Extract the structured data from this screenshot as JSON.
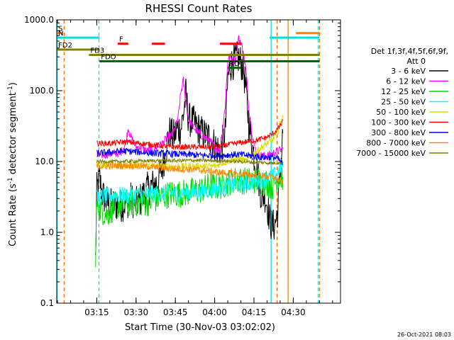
{
  "chart_data": {
    "type": "line",
    "title": "RHESSI Count Rates",
    "xlabel": "Start Time (30-Nov-03 03:02:02)",
    "ylabel": "Count Rate (s",
    "ylabel_sup1": "-1",
    "ylabel_mid": " detector segment",
    "ylabel_sup2": "-1",
    "ylabel_end": ")",
    "x_start_minutes": 0,
    "x_end_minutes": 100,
    "xlim_minutes": [
      -2.3,
      106
    ],
    "x_tick_labels": [
      "03:15",
      "03:30",
      "03:45",
      "04:00",
      "04:15",
      "04:30"
    ],
    "x_tick_minutes": [
      12.97,
      27.97,
      42.97,
      57.97,
      72.97,
      87.97
    ],
    "yscale": "log",
    "ylim": [
      0.1,
      1000
    ],
    "y_tick_labels": [
      "0.1",
      "1.0",
      "10.0",
      "100.0",
      "1000.0"
    ],
    "y_tick_values": [
      0.1,
      1,
      10,
      100,
      1000
    ],
    "legend_title_line1": "Det 1f,3f,4f,5f,6f,9f,",
    "legend_title_line2": "Att 0",
    "legend_position": "right",
    "timestamp": "26-Oct-2021 08:03",
    "series": [
      {
        "name": "3 - 6 keV",
        "color": "#000000",
        "points": [
          [
            12.5,
            0.4
          ],
          [
            13,
            4
          ],
          [
            14,
            6
          ],
          [
            15,
            3.5
          ],
          [
            16,
            3
          ],
          [
            18,
            2.4
          ],
          [
            20,
            2.5
          ],
          [
            22,
            2.4
          ],
          [
            24,
            2.6
          ],
          [
            26,
            3
          ],
          [
            28,
            2.5
          ],
          [
            30,
            3
          ],
          [
            32,
            4
          ],
          [
            34,
            4.5
          ],
          [
            36,
            5
          ],
          [
            38,
            8
          ],
          [
            40,
            20
          ],
          [
            41,
            27
          ],
          [
            42,
            22
          ],
          [
            43,
            25
          ],
          [
            44,
            30
          ],
          [
            45,
            28
          ],
          [
            46,
            45
          ],
          [
            47,
            90
          ],
          [
            48,
            40
          ],
          [
            50,
            35
          ],
          [
            52,
            28
          ],
          [
            54,
            24
          ],
          [
            56,
            22
          ],
          [
            58,
            17
          ],
          [
            60,
            14
          ],
          [
            62,
            25
          ],
          [
            63,
            150
          ],
          [
            64,
            230
          ],
          [
            65,
            250
          ],
          [
            66,
            280
          ],
          [
            67,
            290
          ],
          [
            68,
            250
          ],
          [
            69,
            200
          ],
          [
            70,
            90
          ],
          [
            71,
            35
          ],
          [
            72,
            20
          ],
          [
            73,
            12
          ],
          [
            74,
            8
          ],
          [
            75,
            5
          ],
          [
            76,
            3
          ],
          [
            77,
            3.5
          ],
          [
            78,
            2.5
          ],
          [
            79,
            1.5
          ],
          [
            80,
            1.2
          ],
          [
            81,
            1.3
          ],
          [
            82,
            2
          ],
          [
            83,
            7
          ],
          [
            84,
            25
          ]
        ]
      },
      {
        "name": "6 - 12 keV",
        "color": "#ff00ff",
        "points": [
          [
            13,
            12
          ],
          [
            16,
            12.5
          ],
          [
            19,
            13
          ],
          [
            22,
            13
          ],
          [
            24,
            18
          ],
          [
            25,
            30
          ],
          [
            26,
            22
          ],
          [
            28,
            16
          ],
          [
            30,
            16
          ],
          [
            32,
            14
          ],
          [
            34,
            15
          ],
          [
            36,
            16
          ],
          [
            38,
            18
          ],
          [
            40,
            22
          ],
          [
            42,
            24
          ],
          [
            44,
            40
          ],
          [
            45,
            90
          ],
          [
            46,
            140
          ],
          [
            47,
            70
          ],
          [
            48,
            40
          ],
          [
            50,
            30
          ],
          [
            52,
            25
          ],
          [
            54,
            22
          ],
          [
            56,
            20
          ],
          [
            58,
            16
          ],
          [
            60,
            14
          ],
          [
            62,
            60
          ],
          [
            63,
            280
          ],
          [
            64,
            300
          ],
          [
            65,
            260
          ],
          [
            66,
            280
          ],
          [
            67,
            550
          ],
          [
            68,
            480
          ],
          [
            69,
            330
          ],
          [
            70,
            180
          ],
          [
            71,
            60
          ],
          [
            72,
            30
          ],
          [
            73,
            17
          ],
          [
            74,
            13
          ],
          [
            76,
            12
          ],
          [
            78,
            12
          ],
          [
            80,
            13
          ],
          [
            82,
            14
          ],
          [
            84,
            15
          ]
        ]
      },
      {
        "name": "12 - 25 keV",
        "color": "#00dd00",
        "points": [
          [
            12.5,
            0.5
          ],
          [
            13,
            2.5
          ],
          [
            15,
            2
          ],
          [
            17,
            1.8
          ],
          [
            20,
            2.4
          ],
          [
            23,
            2.5
          ],
          [
            26,
            2.6
          ],
          [
            29,
            2.6
          ],
          [
            32,
            2.6
          ],
          [
            35,
            2.9
          ],
          [
            38,
            3.2
          ],
          [
            41,
            3.5
          ],
          [
            44,
            3.5
          ],
          [
            47,
            3.6
          ],
          [
            50,
            3.8
          ],
          [
            53,
            4
          ],
          [
            56,
            4.5
          ],
          [
            59,
            4.4
          ],
          [
            62,
            4.8
          ],
          [
            65,
            5.5
          ],
          [
            68,
            5.4
          ],
          [
            71,
            5.3
          ],
          [
            74,
            5.5
          ],
          [
            77,
            5.3
          ],
          [
            80,
            4.4
          ],
          [
            82,
            6
          ],
          [
            84,
            6
          ]
        ]
      },
      {
        "name": "25 - 50 keV",
        "color": "#00ffff",
        "points": [
          [
            13,
            3.1
          ],
          [
            16,
            3.2
          ],
          [
            19,
            3.3
          ],
          [
            22,
            3.4
          ],
          [
            25,
            3.3
          ],
          [
            28,
            3.4
          ],
          [
            31,
            3.4
          ],
          [
            34,
            3.5
          ],
          [
            37,
            3.5
          ],
          [
            40,
            3.6
          ],
          [
            43,
            3.6
          ],
          [
            46,
            3.6
          ],
          [
            49,
            3.7
          ],
          [
            52,
            3.7
          ],
          [
            55,
            3.9
          ],
          [
            58,
            4.1
          ],
          [
            61,
            4.3
          ],
          [
            64,
            4.5
          ],
          [
            67,
            4.8
          ],
          [
            70,
            4.9
          ],
          [
            73,
            5.2
          ],
          [
            76,
            5.4
          ],
          [
            79,
            5.8
          ],
          [
            81,
            6.5
          ],
          [
            83,
            8
          ],
          [
            84,
            10
          ]
        ]
      },
      {
        "name": "50 - 100 keV",
        "color": "#dddd00",
        "points": [
          [
            13,
            9
          ],
          [
            20,
            9
          ],
          [
            30,
            8.8
          ],
          [
            40,
            8.6
          ],
          [
            50,
            8.5
          ],
          [
            58,
            8.6
          ],
          [
            62,
            9.8
          ],
          [
            66,
            11
          ],
          [
            68,
            11
          ],
          [
            70,
            10
          ],
          [
            72,
            12
          ],
          [
            74,
            14
          ],
          [
            76,
            16
          ],
          [
            78,
            18
          ],
          [
            80,
            20
          ],
          [
            82,
            26
          ],
          [
            83,
            35
          ],
          [
            84,
            45
          ]
        ]
      },
      {
        "name": "100 - 300 keV",
        "color": "#ff0000",
        "points": [
          [
            13,
            18
          ],
          [
            18,
            18
          ],
          [
            24,
            19
          ],
          [
            30,
            18
          ],
          [
            36,
            17
          ],
          [
            42,
            16
          ],
          [
            48,
            16
          ],
          [
            54,
            16
          ],
          [
            58,
            16
          ],
          [
            62,
            17
          ],
          [
            66,
            18
          ],
          [
            70,
            19
          ],
          [
            74,
            20
          ],
          [
            78,
            22
          ],
          [
            81,
            26
          ],
          [
            83,
            32
          ],
          [
            84,
            38
          ]
        ]
      },
      {
        "name": "300 - 800 keV",
        "color": "#0000ff",
        "points": [
          [
            13,
            13
          ],
          [
            18,
            13.5
          ],
          [
            24,
            14
          ],
          [
            30,
            13.5
          ],
          [
            36,
            13
          ],
          [
            42,
            12.8
          ],
          [
            48,
            12.5
          ],
          [
            54,
            12.2
          ],
          [
            60,
            12
          ],
          [
            64,
            12.5
          ],
          [
            68,
            12.5
          ],
          [
            72,
            12
          ],
          [
            76,
            11.5
          ],
          [
            80,
            11.5
          ],
          [
            82,
            11
          ],
          [
            84,
            9
          ]
        ]
      },
      {
        "name": "800 - 7000 keV",
        "color": "#ff8800",
        "points": [
          [
            13,
            8.5
          ],
          [
            20,
            8.7
          ],
          [
            26,
            8.8
          ],
          [
            32,
            8.5
          ],
          [
            38,
            8
          ],
          [
            44,
            7.8
          ],
          [
            50,
            7.7
          ],
          [
            56,
            7.3
          ],
          [
            60,
            7
          ],
          [
            64,
            6.8
          ],
          [
            68,
            6.6
          ],
          [
            72,
            6.5
          ],
          [
            76,
            6.3
          ],
          [
            80,
            6
          ],
          [
            82,
            5.6
          ],
          [
            84,
            5
          ]
        ]
      },
      {
        "name": "7000 - 15000 keV",
        "color": "#808000",
        "points": [
          [
            13,
            10
          ],
          [
            20,
            10
          ],
          [
            26,
            10.1
          ],
          [
            32,
            10.2
          ],
          [
            38,
            10.3
          ],
          [
            44,
            10.3
          ],
          [
            50,
            10.4
          ],
          [
            56,
            10.3
          ],
          [
            60,
            10.2
          ],
          [
            64,
            10.1
          ],
          [
            68,
            10
          ],
          [
            72,
            9.8
          ],
          [
            76,
            9.7
          ],
          [
            80,
            9.5
          ],
          [
            82,
            9.6
          ],
          [
            84,
            9.5
          ]
        ]
      }
    ],
    "state_bars": [
      {
        "label": "S",
        "color": "#ff8000",
        "y": 650,
        "x0": -2.3,
        "x1": 0
      },
      {
        "label": "",
        "color": "#ff8000",
        "y": 650,
        "x0": 89,
        "x1": 98
      },
      {
        "label": "N",
        "color": "#00dddd",
        "y": 560,
        "x0": -2.3,
        "x1": 14
      },
      {
        "label": "",
        "color": "#00dddd",
        "y": 560,
        "x0": 79,
        "x1": 98
      },
      {
        "label": "F",
        "color": "#ff0000",
        "y": 460,
        "x0": 21,
        "x1": 25
      },
      {
        "label": "",
        "color": "#ff0000",
        "y": 460,
        "x0": 34,
        "x1": 39
      },
      {
        "label": "",
        "color": "#ff0000",
        "y": 460,
        "x0": 60,
        "x1": 68
      },
      {
        "label": "FD2",
        "color": "#808000",
        "y": 380,
        "x0": -2.3,
        "x1": 14
      },
      {
        "label": "FD3",
        "color": "#808000",
        "y": 320,
        "x0": 10,
        "x1": 98
      },
      {
        "label": "FDO",
        "color": "#006400",
        "y": 260,
        "x0": 14,
        "x1": 98
      },
      {
        "label": "RD6",
        "color": "#006400",
        "y": 210,
        "x0": 63,
        "x1": 68
      }
    ],
    "vertical_lines": [
      {
        "color": "#00dddd",
        "x": -2.1,
        "style": "solid"
      },
      {
        "color": "#ff6600",
        "x": 0.5,
        "style": "dashed"
      },
      {
        "color": "#00dddd",
        "x": 13.8,
        "style": "dashed"
      },
      {
        "color": "#00dddd",
        "x": 79.5,
        "style": "solid"
      },
      {
        "color": "#ff6600",
        "x": 81.8,
        "style": "dashed"
      },
      {
        "color": "#cc8800",
        "x": 86,
        "style": "solid"
      },
      {
        "color": "#00dddd",
        "x": 97.5,
        "style": "dashed"
      },
      {
        "color": "#ff6600",
        "x": 98,
        "style": "dashed"
      }
    ]
  }
}
